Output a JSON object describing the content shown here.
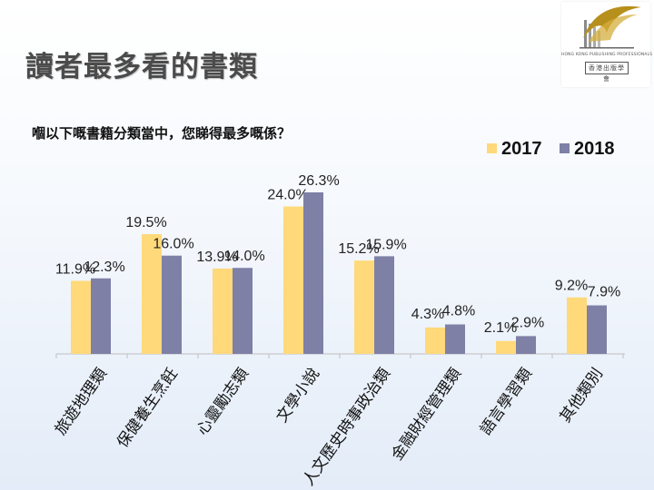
{
  "page": {
    "title": "讀者最多看的書類",
    "question": "嗰以下嘅書籍分類當中，您睇得最多嘅係？"
  },
  "logo": {
    "org_en": "HONG KONG PUBLISHING PROFESSIONALS SOCIETY",
    "org_zh": "香港出版學會"
  },
  "colors": {
    "series_2017": "#ffd97a",
    "series_2018": "#7f80a6",
    "axis": "#bfbfbf"
  },
  "chart_data": {
    "type": "bar",
    "title": "讀者最多看的書類",
    "categories": [
      "旅遊地理類",
      "保健養生烹飪",
      "心靈勵志類",
      "文學小說",
      "人文歷史時事政治類",
      "金融財經管理類",
      "語言學習類",
      "其他類別"
    ],
    "series": [
      {
        "name": "2017",
        "values": [
          11.9,
          19.5,
          13.9,
          24.0,
          15.2,
          4.3,
          2.1,
          9.2
        ],
        "labels": [
          "11.9%",
          "19.5%",
          "13.9%",
          "24.0%",
          "15.2%",
          "4.3%",
          "2.1%",
          "9.2%"
        ]
      },
      {
        "name": "2018",
        "values": [
          12.3,
          16.0,
          14.0,
          26.3,
          15.9,
          4.8,
          2.9,
          7.9
        ],
        "labels": [
          "12.3%",
          "16.0%",
          "14.0%",
          "26.3%",
          "15.9%",
          "4.8%",
          "2.9%",
          "7.9%"
        ]
      }
    ],
    "ylim": [
      0,
      26.3
    ],
    "xlabel": "",
    "ylabel": "",
    "grid": false,
    "legend": "top-right"
  }
}
